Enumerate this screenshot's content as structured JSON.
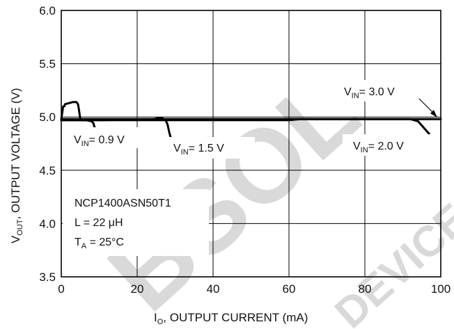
{
  "chart_data": {
    "type": "line",
    "title": "",
    "xlabel": {
      "main": "I",
      "sub": "O",
      "rest": ", OUTPUT CURRENT (mA)"
    },
    "ylabel": {
      "main": "V",
      "sub": "OUT",
      "rest": ", OUTPUT VOLTAGE (V)"
    },
    "xlim": [
      0,
      100
    ],
    "ylim": [
      3.5,
      6.0
    ],
    "xticks": [
      "0",
      "20",
      "40",
      "60",
      "80",
      "100"
    ],
    "yticks": [
      "3.5",
      "4.0",
      "4.5",
      "5.0",
      "5.5",
      "6.0"
    ],
    "grid": true,
    "series": [
      {
        "name": "V_IN = 0.9 V",
        "x": [
          0,
          0.3,
          0.5,
          0.8,
          1.0,
          2.0,
          3.0,
          4.0,
          4.4,
          4.6,
          5.0,
          5.5,
          6.5,
          8.0,
          8.5,
          8.7,
          9.0
        ],
        "y": [
          4.98,
          5.05,
          5.1,
          5.1,
          5.12,
          5.13,
          5.14,
          5.14,
          5.12,
          5.08,
          4.98,
          4.97,
          4.97,
          4.96,
          4.94,
          4.91,
          4.89
        ]
      },
      {
        "name": "V_IN = 1.5 V",
        "x": [
          0,
          10,
          20,
          24.5,
          25.5,
          26.5,
          27.5,
          28.0,
          28.5,
          28.8
        ],
        "y": [
          4.97,
          4.97,
          4.975,
          4.98,
          4.99,
          4.99,
          4.97,
          4.93,
          4.85,
          4.81
        ]
      },
      {
        "name": "V_IN = 2.0 V",
        "x": [
          0,
          20,
          40,
          60,
          63,
          65,
          70,
          80,
          92,
          94,
          95,
          96,
          97
        ],
        "y": [
          4.97,
          4.97,
          4.97,
          4.97,
          4.98,
          4.98,
          4.98,
          4.98,
          4.98,
          4.96,
          4.92,
          4.88,
          4.84
        ]
      },
      {
        "name": "V_IN = 3.0 V",
        "x": [
          0,
          20,
          40,
          60,
          80,
          100
        ],
        "y": [
          4.98,
          4.98,
          4.98,
          4.98,
          4.98,
          4.98
        ]
      }
    ],
    "annotations": [
      {
        "main": "V",
        "sub": "IN",
        "rest": "= 0.9 V"
      },
      {
        "main": "V",
        "sub": "IN",
        "rest": "= 1.5 V"
      },
      {
        "main": "V",
        "sub": "IN",
        "rest": "= 2.0 V"
      },
      {
        "main": "V",
        "sub": "IN",
        "rest": "= 3.0 V"
      }
    ],
    "conditions": [
      {
        "main": "NCP1400ASN50T1",
        "sub": "",
        "rest": ""
      },
      {
        "main": "L = 22 μH",
        "sub": "",
        "rest": ""
      },
      {
        "main": "T",
        "sub": "A",
        "rest": " = 25°C"
      }
    ],
    "watermark": "OBSOLETE DEVICE"
  }
}
